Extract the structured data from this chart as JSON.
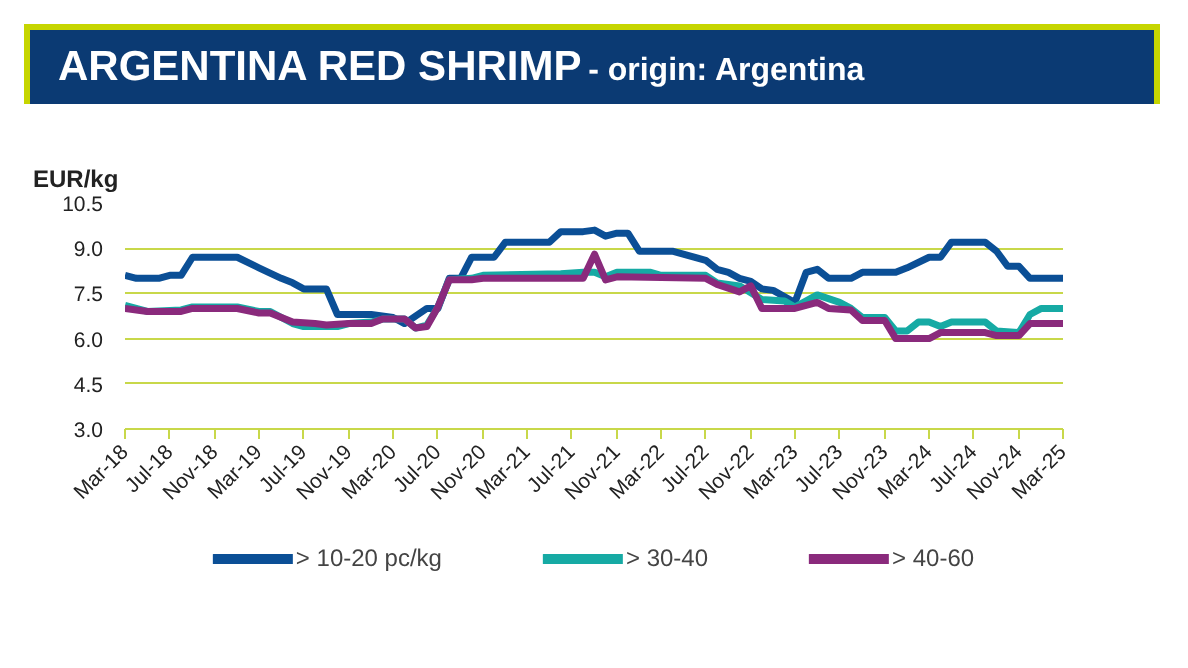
{
  "chart_data": {
    "type": "line",
    "title": "ARGENTINA RED SHRIMP",
    "subtitle": "- origin: Argentina",
    "ylabel": "EUR/kg",
    "ylim": [
      3.0,
      10.5
    ],
    "yticks": [
      {
        "value": 3,
        "label": "3.0"
      },
      {
        "value": 4.5,
        "label": "4.5"
      },
      {
        "value": 6,
        "label": "6.0"
      },
      {
        "value": 7.5,
        "label": "7.5"
      },
      {
        "value": 9,
        "label": "9.0"
      },
      {
        "value": 10.5,
        "label": "10.5"
      }
    ],
    "xlim": [
      "2018-03",
      "2025-03"
    ],
    "xticks": [
      {
        "value": "2018-03",
        "label": "Mar-18"
      },
      {
        "value": "2018-07",
        "label": "Jul-18"
      },
      {
        "value": "2018-11",
        "label": "Nov-18"
      },
      {
        "value": "2019-03",
        "label": "Mar-19"
      },
      {
        "value": "2019-07",
        "label": "Jul-19"
      },
      {
        "value": "2019-11",
        "label": "Nov-19"
      },
      {
        "value": "2020-03",
        "label": "Mar-20"
      },
      {
        "value": "2020-07",
        "label": "Jul-20"
      },
      {
        "value": "2020-11",
        "label": "Nov-20"
      },
      {
        "value": "2021-03",
        "label": "Mar-21"
      },
      {
        "value": "2021-07",
        "label": "Jul-21"
      },
      {
        "value": "2021-11",
        "label": "Nov-21"
      },
      {
        "value": "2022-03",
        "label": "Mar-22"
      },
      {
        "value": "2022-07",
        "label": "Jul-22"
      },
      {
        "value": "2022-11",
        "label": "Nov-22"
      },
      {
        "value": "2023-03",
        "label": "Mar-23"
      },
      {
        "value": "2023-07",
        "label": "Jul-23"
      },
      {
        "value": "2023-11",
        "label": "Nov-23"
      },
      {
        "value": "2024-03",
        "label": "Mar-24"
      },
      {
        "value": "2024-07",
        "label": "Jul-24"
      },
      {
        "value": "2024-11",
        "label": "Nov-24"
      },
      {
        "value": "2025-03",
        "label": "Mar-25"
      }
    ],
    "grid": "y",
    "legend": "bottom",
    "line_style": "solid",
    "marker": "none",
    "series": [
      {
        "name": "> 10-20 pc/kg",
        "color": "#0b4f96",
        "x": [
          "2018-03",
          "2018-04",
          "2018-06",
          "2018-07",
          "2018-08",
          "2018-09",
          "2019-01",
          "2019-03",
          "2019-05",
          "2019-06",
          "2019-07",
          "2019-09",
          "2019-10",
          "2020-01",
          "2020-03",
          "2020-04",
          "2020-06",
          "2020-07",
          "2020-08",
          "2020-09",
          "2020-10",
          "2020-12",
          "2021-01",
          "2021-05",
          "2021-06",
          "2021-08",
          "2021-09",
          "2021-10",
          "2021-11",
          "2021-12",
          "2022-01",
          "2022-04",
          "2022-07",
          "2022-08",
          "2022-09",
          "2022-10",
          "2022-11",
          "2022-12",
          "2023-01",
          "2023-03",
          "2023-04",
          "2023-05",
          "2023-06",
          "2023-08",
          "2023-09",
          "2023-12",
          "2024-01",
          "2024-03",
          "2024-04",
          "2024-05",
          "2024-08",
          "2024-09",
          "2024-10",
          "2024-11",
          "2024-12",
          "2025-03"
        ],
        "values": [
          8.1,
          8.0,
          8.0,
          8.1,
          8.1,
          8.7,
          8.7,
          8.35,
          8.0,
          7.85,
          7.65,
          7.65,
          6.8,
          6.8,
          6.7,
          6.5,
          7.0,
          7.0,
          8.0,
          8.0,
          8.7,
          8.7,
          9.2,
          9.2,
          9.55,
          9.55,
          9.6,
          9.4,
          9.5,
          9.5,
          8.9,
          8.9,
          8.6,
          8.3,
          8.2,
          8.0,
          7.9,
          7.65,
          7.6,
          7.2,
          8.2,
          8.3,
          8.0,
          8.0,
          8.2,
          8.2,
          8.35,
          8.7,
          8.7,
          9.2,
          9.2,
          8.9,
          8.4,
          8.4,
          8.0,
          8.0
        ]
      },
      {
        "name": "> 30-40",
        "color": "#16aaa4",
        "x": [
          "2018-03",
          "2018-05",
          "2018-08",
          "2018-09",
          "2019-01",
          "2019-03",
          "2019-04",
          "2019-06",
          "2019-07",
          "2019-10",
          "2019-11",
          "2020-01",
          "2020-02",
          "2020-04",
          "2020-05",
          "2020-06",
          "2020-07",
          "2020-08",
          "2020-10",
          "2020-11",
          "2021-06",
          "2021-08",
          "2021-09",
          "2021-10",
          "2021-11",
          "2022-02",
          "2022-03",
          "2022-07",
          "2022-08",
          "2022-10",
          "2022-12",
          "2023-02",
          "2023-03",
          "2023-05",
          "2023-07",
          "2023-08",
          "2023-09",
          "2023-11",
          "2023-12",
          "2024-01",
          "2024-02",
          "2024-03",
          "2024-04",
          "2024-05",
          "2024-08",
          "2024-09",
          "2024-11",
          "2024-12",
          "2025-01",
          "2025-03"
        ],
        "values": [
          7.1,
          6.9,
          6.95,
          7.05,
          7.05,
          6.9,
          6.9,
          6.5,
          6.4,
          6.4,
          6.5,
          6.55,
          6.65,
          6.65,
          6.35,
          6.45,
          7.05,
          7.95,
          8.0,
          8.1,
          8.15,
          8.2,
          8.2,
          8.05,
          8.2,
          8.2,
          8.1,
          8.1,
          7.85,
          7.75,
          7.3,
          7.25,
          7.05,
          7.45,
          7.2,
          7.0,
          6.7,
          6.7,
          6.25,
          6.25,
          6.55,
          6.55,
          6.4,
          6.55,
          6.55,
          6.25,
          6.2,
          6.8,
          7.0,
          7.0
        ]
      },
      {
        "name": "> 40-60",
        "color": "#8a2a7c",
        "x": [
          "2018-03",
          "2018-05",
          "2018-08",
          "2018-09",
          "2019-01",
          "2019-03",
          "2019-04",
          "2019-06",
          "2019-08",
          "2019-09",
          "2019-11",
          "2020-01",
          "2020-02",
          "2020-04",
          "2020-05",
          "2020-06",
          "2020-07",
          "2020-08",
          "2020-10",
          "2020-11",
          "2021-08",
          "2021-09",
          "2021-10",
          "2021-11",
          "2022-07",
          "2022-08",
          "2022-10",
          "2022-11",
          "2022-12",
          "2023-03",
          "2023-05",
          "2023-06",
          "2023-08",
          "2023-09",
          "2023-11",
          "2023-12",
          "2024-03",
          "2024-04",
          "2024-08",
          "2024-09",
          "2024-11",
          "2024-12",
          "2025-03"
        ],
        "values": [
          7.0,
          6.9,
          6.9,
          7.0,
          7.0,
          6.85,
          6.85,
          6.55,
          6.5,
          6.45,
          6.5,
          6.5,
          6.65,
          6.65,
          6.35,
          6.4,
          7.05,
          7.95,
          7.95,
          8.0,
          8.0,
          8.8,
          7.95,
          8.05,
          8.0,
          7.8,
          7.55,
          7.75,
          7.0,
          7.0,
          7.2,
          7.0,
          6.95,
          6.6,
          6.6,
          6.0,
          6.0,
          6.2,
          6.2,
          6.1,
          6.1,
          6.5,
          6.5
        ]
      }
    ]
  }
}
